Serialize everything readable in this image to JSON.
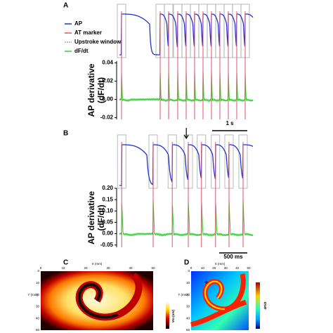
{
  "panels": [
    {
      "label": "A",
      "legend": [
        "AP",
        "AT marker",
        "Upstroke window",
        "dF/dt"
      ],
      "colors": [
        "#2233cc",
        "#e0506e",
        "#aaaaaa",
        "#33cc33"
      ],
      "ylabel": "AP derivative\n(dF/dt)",
      "ylim": [
        -0.022,
        0.042
      ],
      "yticks": [
        {
          "value": 0.04,
          "label": "0.04"
        },
        {
          "value": 0.02,
          "label": "0.02"
        },
        {
          "value": 0,
          "label": "0.00"
        },
        {
          "value": -0.02,
          "label": "-0.02"
        }
      ],
      "xlim": [
        0,
        3800
      ],
      "scale_bar": {
        "value": 1000,
        "label": "1 s"
      },
      "at_times": [
        60,
        1160,
        1400,
        1660,
        1900,
        2140,
        2380,
        2620,
        2860,
        3100,
        3340,
        3580
      ]
    },
    {
      "label": "B",
      "ylabel": "AP derivative\n(dF/dt)",
      "ylim": [
        -0.06,
        0.2
      ],
      "yticks": [
        {
          "value": 0.2,
          "label": "0.20"
        },
        {
          "value": 0.15,
          "label": "0.15"
        },
        {
          "value": 0.1,
          "label": "0.10"
        },
        {
          "value": 0.05,
          "label": "0.05"
        },
        {
          "value": 0,
          "label": "0.00"
        },
        {
          "value": -0.05,
          "label": "-0.05"
        }
      ],
      "xlim": [
        0,
        2375
      ],
      "scale_bar": {
        "value": 500,
        "label": "500 ms"
      },
      "at_times": [
        40,
        600,
        940,
        1225,
        1460,
        1710,
        1950,
        2200
      ],
      "arrow_time": 1190
    }
  ],
  "maps": [
    {
      "label": "C",
      "xlabel": "X (mm)",
      "ylabel": "Y (mm)",
      "colorbar": "Vm (mV)",
      "ticks": [
        0,
        10,
        20,
        30,
        40,
        50
      ]
    },
    {
      "label": "D",
      "xlabel": "X (mm)",
      "ylabel": "Y (mm)",
      "colorbar": "dF/dt",
      "ticks": [
        0,
        10,
        20,
        30,
        40,
        50
      ]
    }
  ]
}
